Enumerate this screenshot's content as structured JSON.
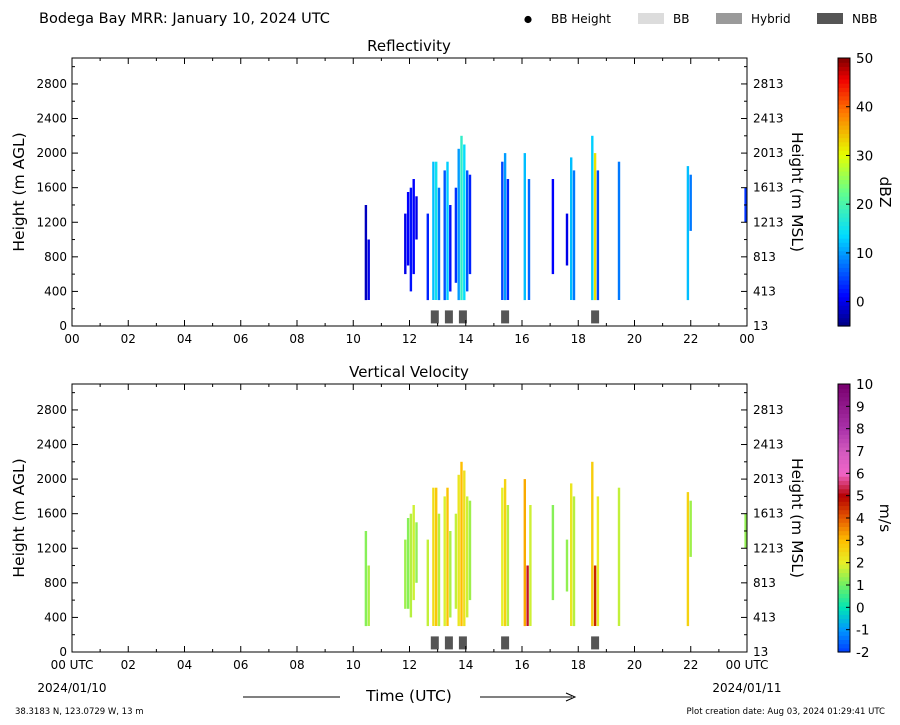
{
  "header": {
    "title": "Bodega Bay MRR:  January 10, 2024 UTC",
    "legend": [
      {
        "label": "BB Height",
        "kind": "dot",
        "color": "#000000"
      },
      {
        "label": "BB",
        "kind": "box",
        "color": "#dcdcdc"
      },
      {
        "label": "Hybrid",
        "kind": "box",
        "color": "#9a9a9a"
      },
      {
        "label": "NBB",
        "kind": "box",
        "color": "#555555"
      }
    ]
  },
  "footer": {
    "location": "38.3183 N, 123.0729 W, 13 m",
    "creation": "Plot creation date: Aug 03, 2024 01:29:41 UTC",
    "xlabel": "Time (UTC)",
    "start_tick": "00 UTC",
    "start_date": "2024/01/10",
    "end_tick": "00 UTC",
    "end_date": "2024/01/11"
  },
  "chart_data": [
    {
      "type": "heatmap",
      "title": "Reflectivity",
      "ylabel": "Height (m AGL)",
      "ylabel_right": "Height (m MSL)",
      "xlim": [
        0,
        24
      ],
      "ylim": [
        0,
        3100
      ],
      "x_ticks": [
        "00",
        "02",
        "04",
        "06",
        "08",
        "10",
        "12",
        "14",
        "16",
        "18",
        "20",
        "22",
        "00"
      ],
      "y_ticks": [
        0,
        400,
        800,
        1200,
        1600,
        2000,
        2400,
        2800
      ],
      "y_ticks_right": [
        "13",
        "413",
        "813",
        "1213",
        "1613",
        "2013",
        "2413",
        "2813"
      ],
      "colorbar": {
        "label": "dBZ",
        "range": [
          -5,
          50
        ],
        "ticks": [
          0,
          10,
          20,
          30,
          40,
          50
        ],
        "scale": "jet"
      },
      "echoes": [
        {
          "t": 10.45,
          "bottom": 300,
          "top": 1400,
          "value": -2
        },
        {
          "t": 10.55,
          "bottom": 300,
          "top": 1000,
          "value": 0
        },
        {
          "t": 11.85,
          "bottom": 600,
          "top": 1300,
          "value": 0
        },
        {
          "t": 11.95,
          "bottom": 700,
          "top": 1550,
          "value": 1
        },
        {
          "t": 12.05,
          "bottom": 400,
          "top": 1600,
          "value": 2
        },
        {
          "t": 12.15,
          "bottom": 600,
          "top": 1700,
          "value": 1
        },
        {
          "t": 12.25,
          "bottom": 1000,
          "top": 1500,
          "value": 0
        },
        {
          "t": 12.65,
          "bottom": 300,
          "top": 1300,
          "value": 3
        },
        {
          "t": 12.85,
          "bottom": 300,
          "top": 1900,
          "value": 12
        },
        {
          "t": 12.95,
          "bottom": 300,
          "top": 1900,
          "value": 15
        },
        {
          "t": 13.05,
          "bottom": 300,
          "top": 1600,
          "value": 8
        },
        {
          "t": 13.25,
          "bottom": 300,
          "top": 1800,
          "value": 6
        },
        {
          "t": 13.35,
          "bottom": 300,
          "top": 1900,
          "value": 13
        },
        {
          "t": 13.45,
          "bottom": 400,
          "top": 1400,
          "value": 2
        },
        {
          "t": 13.65,
          "bottom": 500,
          "top": 1600,
          "value": 4
        },
        {
          "t": 13.75,
          "bottom": 300,
          "top": 2050,
          "value": 10
        },
        {
          "t": 13.85,
          "bottom": 300,
          "top": 2200,
          "value": 18
        },
        {
          "t": 13.95,
          "bottom": 300,
          "top": 2100,
          "value": 14
        },
        {
          "t": 14.05,
          "bottom": 400,
          "top": 1800,
          "value": 6
        },
        {
          "t": 14.15,
          "bottom": 600,
          "top": 1750,
          "value": 3
        },
        {
          "t": 15.3,
          "bottom": 300,
          "top": 1900,
          "value": 5
        },
        {
          "t": 15.4,
          "bottom": 300,
          "top": 2000,
          "value": 10
        },
        {
          "t": 15.5,
          "bottom": 300,
          "top": 1700,
          "value": 3
        },
        {
          "t": 16.1,
          "bottom": 300,
          "top": 2000,
          "value": 12
        },
        {
          "t": 16.25,
          "bottom": 300,
          "top": 1700,
          "value": 7
        },
        {
          "t": 17.1,
          "bottom": 600,
          "top": 1700,
          "value": 1
        },
        {
          "t": 17.6,
          "bottom": 700,
          "top": 1300,
          "value": 0
        },
        {
          "t": 17.75,
          "bottom": 300,
          "top": 1950,
          "value": 12
        },
        {
          "t": 17.85,
          "bottom": 300,
          "top": 1800,
          "value": 8
        },
        {
          "t": 18.5,
          "bottom": 300,
          "top": 2200,
          "value": 13
        },
        {
          "t": 18.6,
          "bottom": 300,
          "top": 2000,
          "value": 32
        },
        {
          "t": 18.7,
          "bottom": 300,
          "top": 1800,
          "value": 5
        },
        {
          "t": 19.45,
          "bottom": 300,
          "top": 1900,
          "value": 8
        },
        {
          "t": 21.9,
          "bottom": 300,
          "top": 1850,
          "value": 12
        },
        {
          "t": 22.0,
          "bottom": 1100,
          "top": 1750,
          "value": 8
        },
        {
          "t": 23.95,
          "bottom": 1200,
          "top": 1600,
          "value": 4
        }
      ],
      "markers": [
        {
          "t": 12.9,
          "category": "NBB"
        },
        {
          "t": 13.4,
          "category": "NBB"
        },
        {
          "t": 13.9,
          "category": "NBB"
        },
        {
          "t": 15.4,
          "category": "NBB"
        },
        {
          "t": 18.6,
          "category": "NBB"
        }
      ]
    },
    {
      "type": "heatmap",
      "title": "Vertical Velocity",
      "ylabel": "Height (m AGL)",
      "ylabel_right": "Height (m MSL)",
      "xlim": [
        0,
        24
      ],
      "ylim": [
        0,
        3100
      ],
      "x_ticks": [
        "00 UTC",
        "02",
        "04",
        "06",
        "08",
        "10",
        "12",
        "14",
        "16",
        "18",
        "20",
        "22",
        "00 UTC"
      ],
      "y_ticks": [
        0,
        400,
        800,
        1200,
        1600,
        2000,
        2400,
        2800
      ],
      "y_ticks_right": [
        "13",
        "413",
        "813",
        "1213",
        "1613",
        "2013",
        "2413",
        "2813"
      ],
      "colorbar": {
        "label": "m/s",
        "range": [
          -2,
          10
        ],
        "ticks": [
          -2,
          -1,
          0,
          1,
          2,
          3,
          4,
          5,
          6,
          7,
          8,
          9,
          10
        ],
        "scale": "velocity"
      },
      "echoes": [
        {
          "t": 10.45,
          "bottom": 300,
          "top": 1400,
          "value": 1.2
        },
        {
          "t": 10.55,
          "bottom": 300,
          "top": 1000,
          "value": 1.5
        },
        {
          "t": 11.85,
          "bottom": 500,
          "top": 1300,
          "value": 1.4
        },
        {
          "t": 11.95,
          "bottom": 500,
          "top": 1550,
          "value": 1.2
        },
        {
          "t": 12.05,
          "bottom": 400,
          "top": 1600,
          "value": 1.6
        },
        {
          "t": 12.15,
          "bottom": 600,
          "top": 1700,
          "value": 1.8
        },
        {
          "t": 12.25,
          "bottom": 800,
          "top": 1500,
          "value": 1.3
        },
        {
          "t": 12.65,
          "bottom": 300,
          "top": 1300,
          "value": 1.7
        },
        {
          "t": 12.85,
          "bottom": 300,
          "top": 1900,
          "value": 2.4
        },
        {
          "t": 12.95,
          "bottom": 300,
          "top": 1900,
          "value": 2.8
        },
        {
          "t": 13.05,
          "bottom": 300,
          "top": 1600,
          "value": 1.6
        },
        {
          "t": 13.25,
          "bottom": 300,
          "top": 1800,
          "value": 1.9
        },
        {
          "t": 13.35,
          "bottom": 300,
          "top": 1900,
          "value": 2.9
        },
        {
          "t": 13.45,
          "bottom": 400,
          "top": 1400,
          "value": 1.5
        },
        {
          "t": 13.65,
          "bottom": 500,
          "top": 1600,
          "value": 1.7
        },
        {
          "t": 13.75,
          "bottom": 300,
          "top": 2050,
          "value": 2.2
        },
        {
          "t": 13.85,
          "bottom": 300,
          "top": 2200,
          "value": 3.0
        },
        {
          "t": 13.95,
          "bottom": 300,
          "top": 2100,
          "value": 2.3
        },
        {
          "t": 14.05,
          "bottom": 400,
          "top": 1800,
          "value": 1.8
        },
        {
          "t": 14.15,
          "bottom": 600,
          "top": 1750,
          "value": 1.4
        },
        {
          "t": 15.3,
          "bottom": 300,
          "top": 1900,
          "value": 2.0
        },
        {
          "t": 15.4,
          "bottom": 300,
          "top": 2000,
          "value": 2.6
        },
        {
          "t": 15.5,
          "bottom": 300,
          "top": 1700,
          "value": 1.6
        },
        {
          "t": 16.1,
          "bottom": 300,
          "top": 2000,
          "value": 3.2
        },
        {
          "t": 16.2,
          "bottom": 300,
          "top": 1000,
          "value": 5.2
        },
        {
          "t": 16.3,
          "bottom": 300,
          "top": 1700,
          "value": 1.8
        },
        {
          "t": 17.1,
          "bottom": 600,
          "top": 1700,
          "value": 1.2
        },
        {
          "t": 17.6,
          "bottom": 700,
          "top": 1300,
          "value": 1.3
        },
        {
          "t": 17.75,
          "bottom": 300,
          "top": 1950,
          "value": 2.2
        },
        {
          "t": 17.85,
          "bottom": 300,
          "top": 1800,
          "value": 1.6
        },
        {
          "t": 18.5,
          "bottom": 300,
          "top": 2200,
          "value": 2.7
        },
        {
          "t": 18.6,
          "bottom": 300,
          "top": 1000,
          "value": 4.6
        },
        {
          "t": 18.7,
          "bottom": 300,
          "top": 1800,
          "value": 2.0
        },
        {
          "t": 19.45,
          "bottom": 300,
          "top": 1900,
          "value": 1.7
        },
        {
          "t": 21.9,
          "bottom": 300,
          "top": 1850,
          "value": 2.6
        },
        {
          "t": 22.0,
          "bottom": 1100,
          "top": 1750,
          "value": 1.4
        },
        {
          "t": 23.95,
          "bottom": 1200,
          "top": 1600,
          "value": 1.3
        }
      ],
      "markers": [
        {
          "t": 12.9,
          "category": "NBB"
        },
        {
          "t": 13.4,
          "category": "NBB"
        },
        {
          "t": 13.9,
          "category": "NBB"
        },
        {
          "t": 15.4,
          "category": "NBB"
        },
        {
          "t": 18.6,
          "category": "NBB"
        }
      ]
    }
  ]
}
